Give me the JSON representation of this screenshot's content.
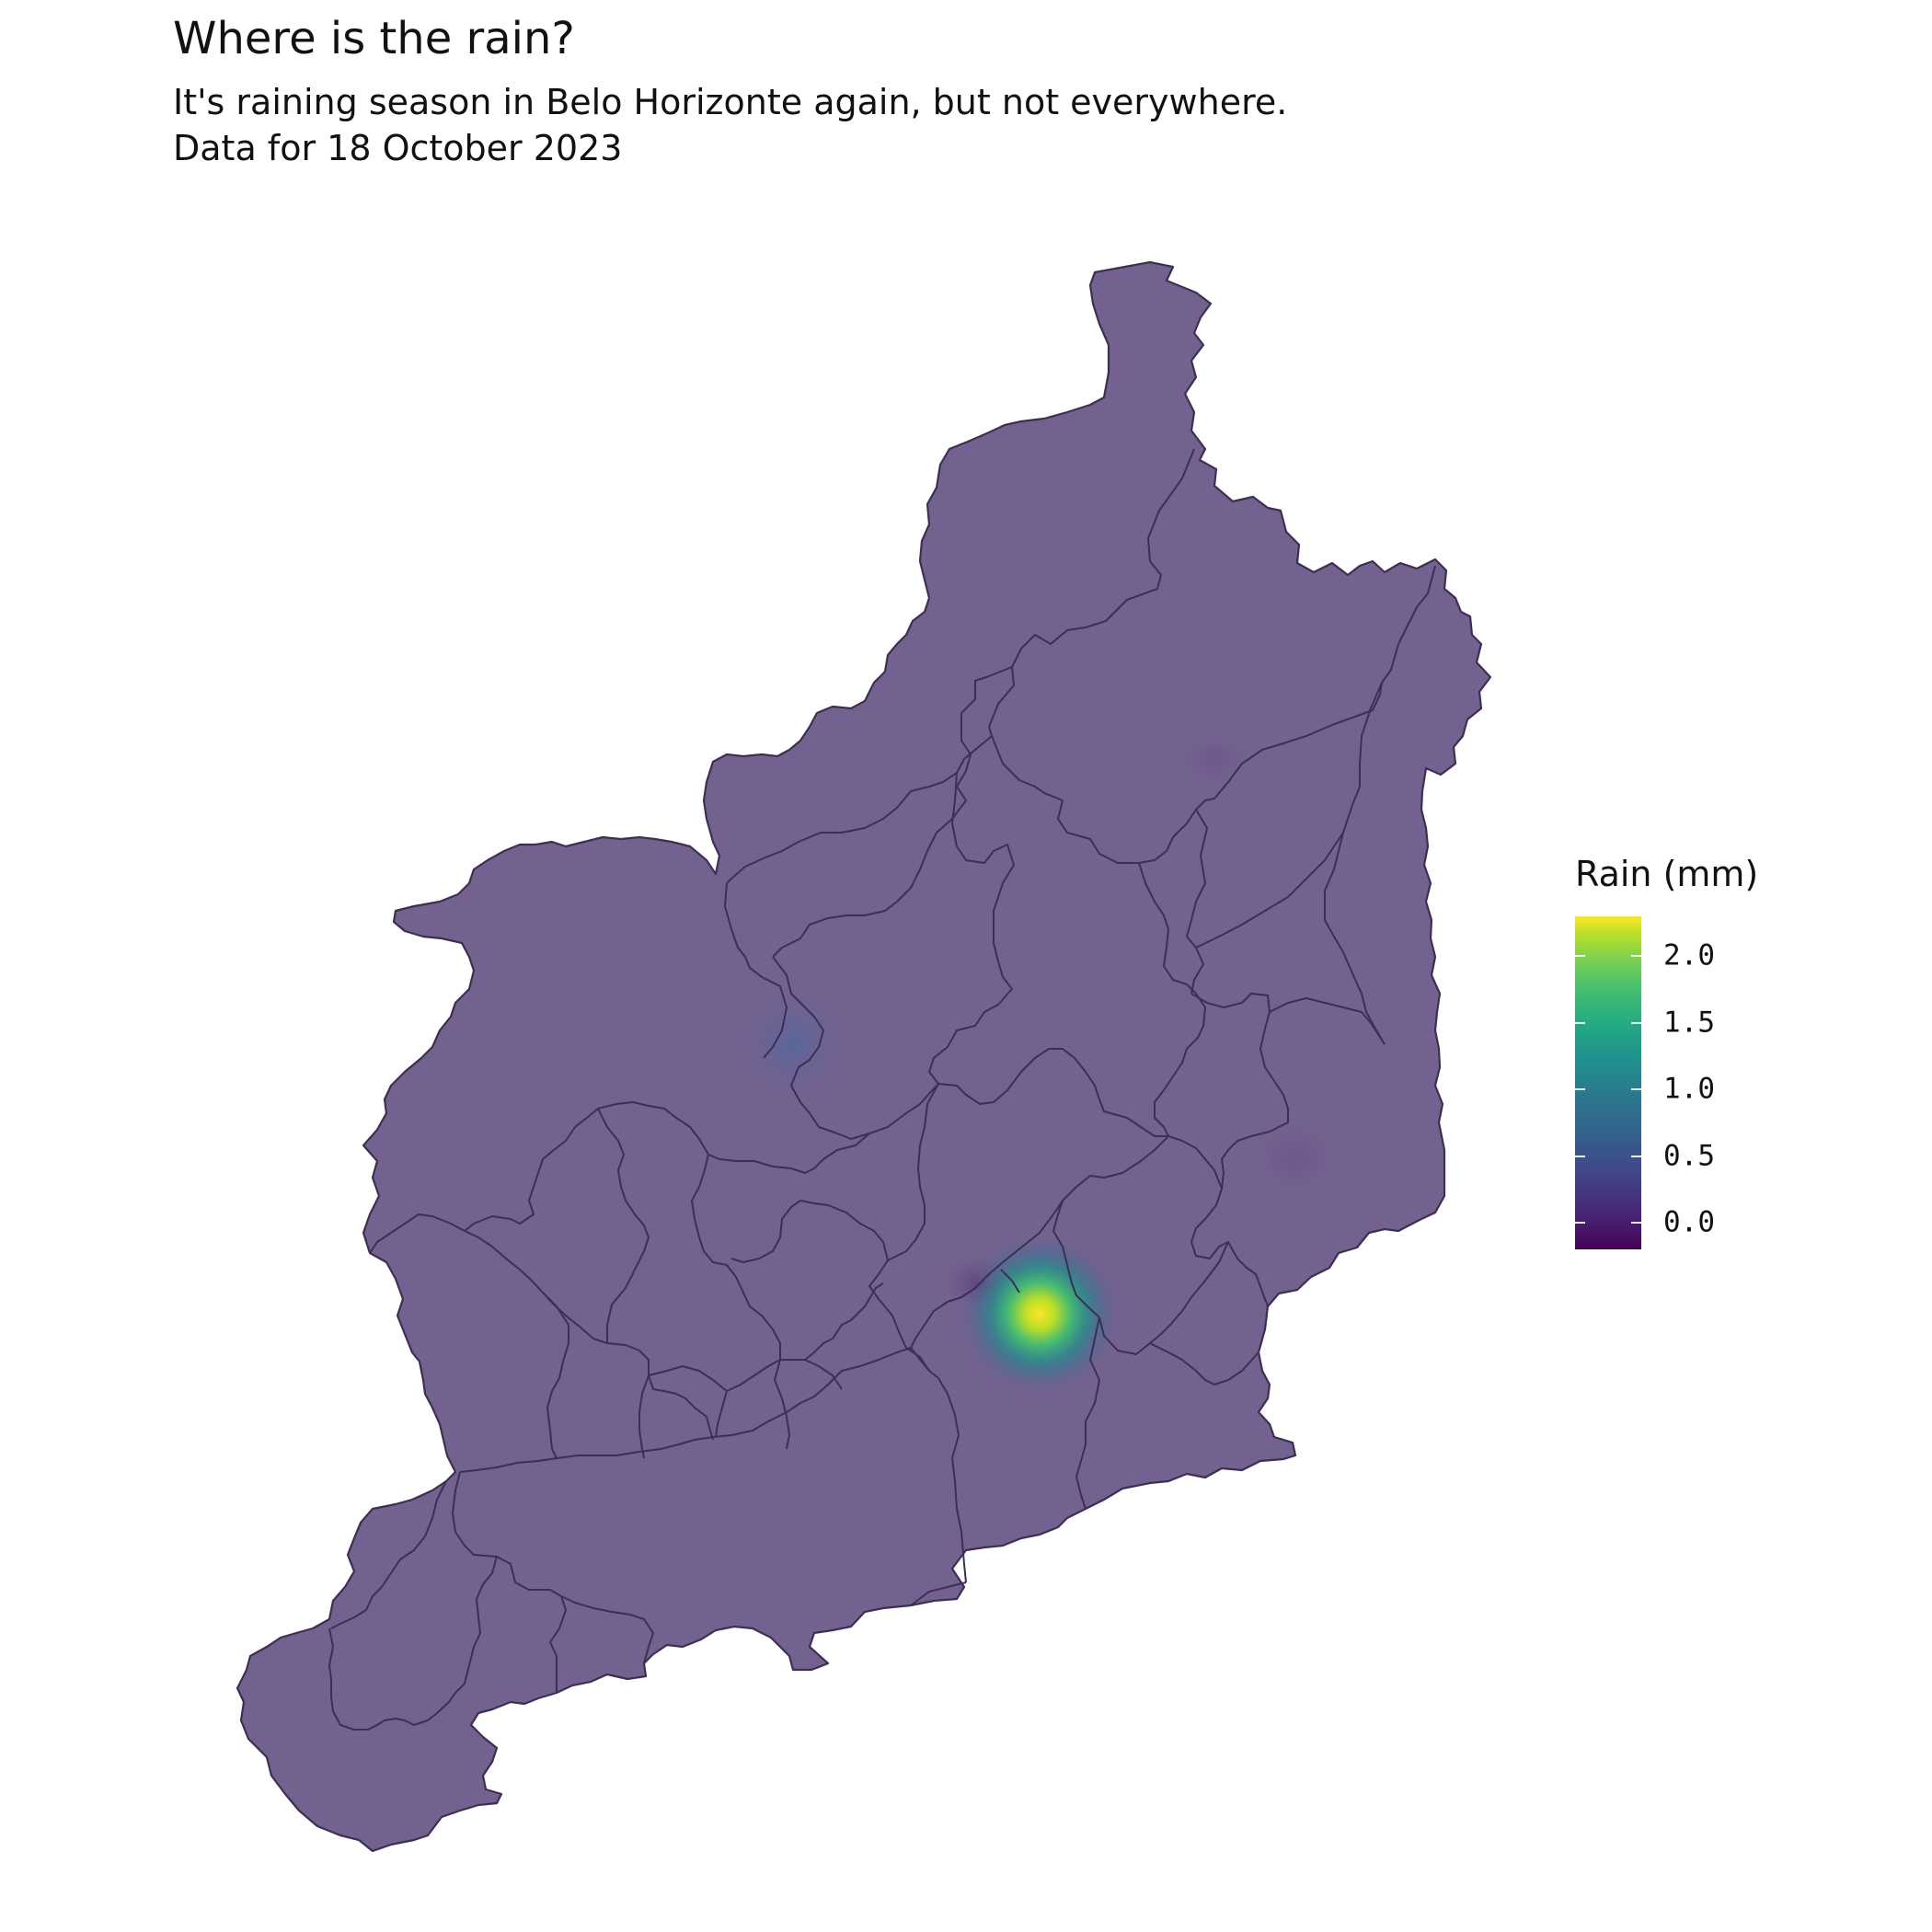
{
  "title": "Where is the rain?",
  "subtitle": [
    "It's raining season in Belo Horizonte again, but not everywhere.",
    "Data for 18 October 2023"
  ],
  "legend": {
    "title": "Rain (mm)",
    "palette": "viridis",
    "min": -0.2,
    "max": 2.3,
    "breaks": [
      {
        "value": 2.0,
        "label": "2.0"
      },
      {
        "value": 1.5,
        "label": "1.5"
      },
      {
        "value": 1.0,
        "label": "1.0"
      },
      {
        "value": 0.5,
        "label": "0.5"
      },
      {
        "value": 0.0,
        "label": "0.0"
      }
    ]
  },
  "colors": {
    "base_fill": "#73628f",
    "border": "#3d2f52",
    "hotspot": "#fde725"
  }
}
